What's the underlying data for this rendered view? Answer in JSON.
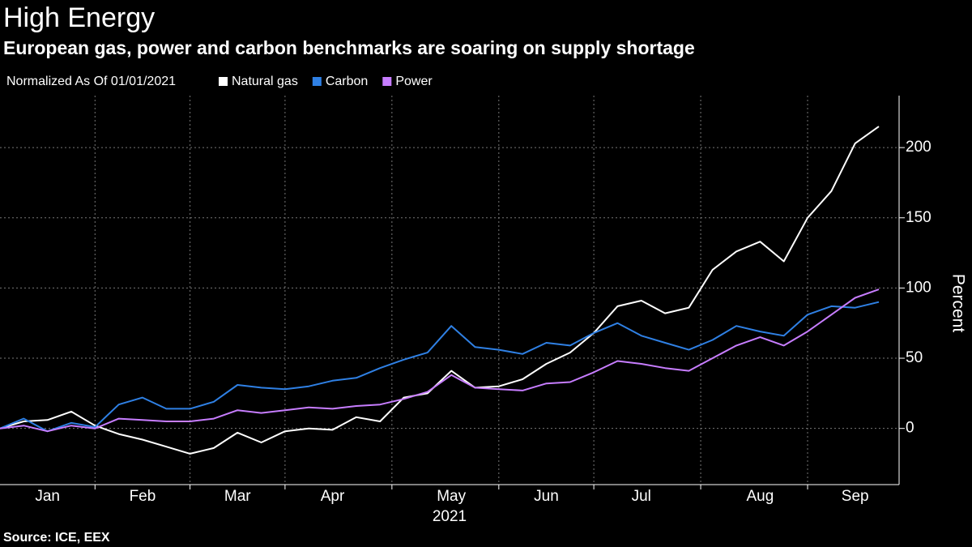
{
  "chart_data": {
    "type": "line",
    "title": "High Energy",
    "subtitle": "European gas, power and carbon benchmarks are soaring on supply shortage",
    "legend_title": "Normalized As Of 01/01/2021",
    "source": "Source: ICE, EEX",
    "x_label": "2021",
    "y_label": "Percent",
    "categories": [
      null,
      null,
      "Jan",
      null,
      null,
      null,
      "Feb",
      null,
      null,
      null,
      "Mar",
      null,
      null,
      null,
      "Apr",
      null,
      null,
      null,
      null,
      "May",
      null,
      null,
      null,
      "Jun",
      null,
      null,
      null,
      "Jul",
      null,
      null,
      null,
      null,
      "Aug",
      null,
      null,
      null,
      "Sep",
      null
    ],
    "series": [
      {
        "name": "Natural gas",
        "color": "#ffffff",
        "values": [
          0,
          5,
          6,
          12,
          2,
          -4,
          -8,
          -13,
          -18,
          -14,
          -3,
          -10,
          -2,
          0,
          -1,
          8,
          5,
          22,
          25,
          41,
          29,
          30,
          35,
          46,
          54,
          68,
          87,
          91,
          82,
          86,
          113,
          126,
          133,
          119,
          150,
          169,
          203,
          215
        ]
      },
      {
        "name": "Carbon",
        "color": "#2f80e4",
        "values": [
          0,
          7,
          -2,
          4,
          1,
          17,
          22,
          14,
          14,
          19,
          31,
          29,
          28,
          30,
          34,
          36,
          43,
          49,
          54,
          73,
          58,
          56,
          53,
          61,
          59,
          68,
          75,
          66,
          61,
          56,
          63,
          73,
          69,
          66,
          81,
          87,
          86,
          90
        ]
      },
      {
        "name": "Power",
        "color": "#c77dff",
        "values": [
          0,
          2,
          -2,
          2,
          0,
          7,
          6,
          5,
          5,
          7,
          13,
          11,
          13,
          15,
          14,
          16,
          17,
          21,
          26,
          38,
          29,
          28,
          27,
          32,
          33,
          40,
          48,
          46,
          43,
          41,
          50,
          59,
          65,
          59,
          69,
          81,
          93,
          99
        ]
      }
    ],
    "ylim": [
      -40,
      237
    ],
    "yticks": [
      0,
      50,
      100,
      150,
      200
    ],
    "grid": true
  }
}
